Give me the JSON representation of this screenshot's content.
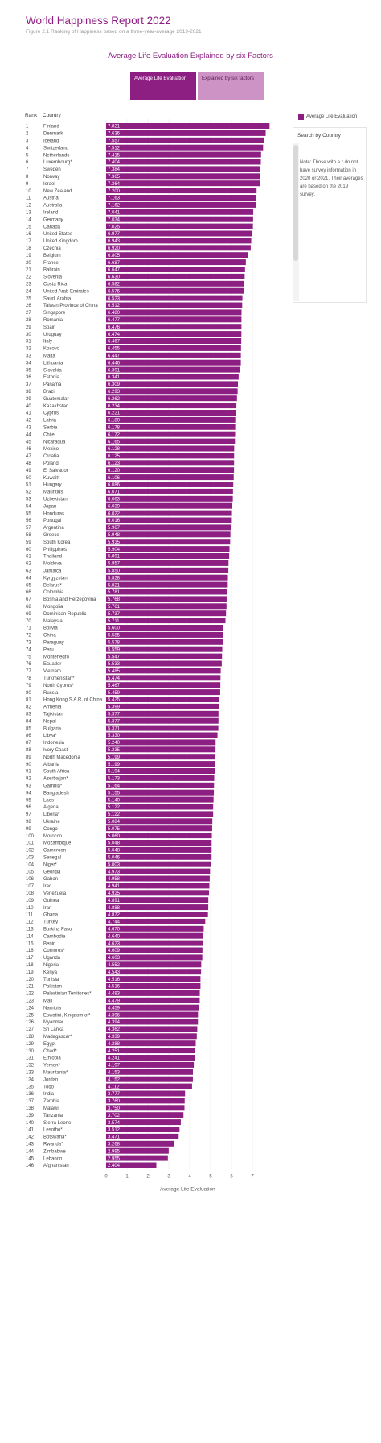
{
  "header": {
    "title": "World Happiness Report 2022",
    "subtitle": "Figure 2.1 Ranking of Happiness based on a three-year-average 2019-2021"
  },
  "viz_title": "Average Life Evaluation Explained by six Factors",
  "tabs": [
    {
      "label": "Average Life Evaluation",
      "active": true
    },
    {
      "label": "Explained by six factors",
      "active": false
    }
  ],
  "columns": {
    "rank": "Rank",
    "country": "Country"
  },
  "legend": {
    "label": "Average Life Evaluation",
    "color": "#8d1f83"
  },
  "search": {
    "label": "Search by Country"
  },
  "note": "Note: Those with a * do not have survey information in 2020 or 2021. Their averages are based on the 2019 survey.",
  "colors": {
    "bar": "#8d1f83",
    "tab_inactive": "#cc93c4",
    "title": "#8d1f83"
  },
  "chart_data": {
    "type": "bar",
    "orientation": "horizontal",
    "xlabel": "Average Life Evaluation",
    "xlim": [
      0,
      7.8
    ],
    "xticks": [
      0,
      1,
      2,
      3,
      4,
      5,
      6,
      7
    ],
    "grid": true,
    "legend_position": "top-right",
    "ranks": [
      "1",
      "2",
      "3",
      "4",
      "5",
      "6",
      "7",
      "8",
      "9",
      "10",
      "11",
      "12",
      "13",
      "14",
      "15",
      "16",
      "17",
      "18",
      "19",
      "20",
      "21",
      "22",
      "23",
      "24",
      "25",
      "26",
      "27",
      "28",
      "29",
      "30",
      "31",
      "32",
      "33",
      "34",
      "35",
      "36",
      "37",
      "38",
      "39",
      "40",
      "41",
      "42",
      "43",
      "44",
      "45",
      "46",
      "47",
      "48",
      "49",
      "50",
      "51",
      "52",
      "53",
      "54",
      "55",
      "56",
      "57",
      "58",
      "59",
      "60",
      "61",
      "62",
      "63",
      "64",
      "65",
      "66",
      "67",
      "68",
      "69",
      "70",
      "71",
      "72",
      "73",
      "74",
      "75",
      "76",
      "77",
      "78",
      "79",
      "80",
      "81",
      "82",
      "83",
      "84",
      "85",
      "86",
      "87",
      "88",
      "89",
      "90",
      "91",
      "92",
      "93",
      "94",
      "95",
      "96",
      "97",
      "98",
      "99",
      "100",
      "101",
      "102",
      "103",
      "104",
      "105",
      "106",
      "107",
      "108",
      "109",
      "110",
      "111",
      "112",
      "113",
      "114",
      "115",
      "116",
      "117",
      "118",
      "119",
      "120",
      "121",
      "122",
      "123",
      "124",
      "125",
      "126",
      "127",
      "128",
      "129",
      "130",
      "131",
      "132",
      "133",
      "134",
      "135",
      "136",
      "137",
      "138",
      "139",
      "140",
      "141",
      "142",
      "143",
      "144",
      "145",
      "146"
    ],
    "categories": [
      "Finland",
      "Denmark",
      "Iceland",
      "Switzerland",
      "Netherlands",
      "Luxembourg*",
      "Sweden",
      "Norway",
      "Israel",
      "New Zealand",
      "Austria",
      "Australia",
      "Ireland",
      "Germany",
      "Canada",
      "United States",
      "United Kingdom",
      "Czechia",
      "Belgium",
      "France",
      "Bahrain",
      "Slovenia",
      "Costa Rica",
      "United Arab Emirates",
      "Saudi Arabia",
      "Taiwan Province of China",
      "Singapore",
      "Romania",
      "Spain",
      "Uruguay",
      "Italy",
      "Kosovo",
      "Malta",
      "Lithuania",
      "Slovakia",
      "Estonia",
      "Panama",
      "Brazil",
      "Guatemala*",
      "Kazakhstan",
      "Cyprus",
      "Latvia",
      "Serbia",
      "Chile",
      "Nicaragua",
      "Mexico",
      "Croatia",
      "Poland",
      "El Salvador",
      "Kuwait*",
      "Hungary",
      "Mauritius",
      "Uzbekistan",
      "Japan",
      "Honduras",
      "Portugal",
      "Argentina",
      "Greece",
      "South Korea",
      "Philippines",
      "Thailand",
      "Moldova",
      "Jamaica",
      "Kyrgyzstan",
      "Belarus*",
      "Colombia",
      "Bosnia and Herzegovina",
      "Mongolia",
      "Dominican Republic",
      "Malaysia",
      "Bolivia",
      "China",
      "Paraguay",
      "Peru",
      "Montenegro",
      "Ecuador",
      "Vietnam",
      "Turkmenistan*",
      "North Cyprus*",
      "Russia",
      "Hong Kong S.A.R. of China",
      "Armenia",
      "Tajikistan",
      "Nepal",
      "Bulgaria",
      "Libya*",
      "Indonesia",
      "Ivory Coast",
      "North Macedonia",
      "Albania",
      "South Africa",
      "Azerbaijan*",
      "Gambia*",
      "Bangladesh",
      "Laos",
      "Algeria",
      "Liberia*",
      "Ukraine",
      "Congo",
      "Morocco",
      "Mozambique",
      "Cameroon",
      "Senegal",
      "Niger*",
      "Georgia",
      "Gabon",
      "Iraq",
      "Venezuela",
      "Guinea",
      "Iran",
      "Ghana",
      "Turkey",
      "Burkina Faso",
      "Cambodia",
      "Benin",
      "Comoros*",
      "Uganda",
      "Nigeria",
      "Kenya",
      "Tunisia",
      "Pakistan",
      "Palestinian Territories*",
      "Mali",
      "Namibia",
      "Eswatini, Kingdom of*",
      "Myanmar",
      "Sri Lanka",
      "Madagascar*",
      "Egypt",
      "Chad*",
      "Ethiopia",
      "Yemen*",
      "Mauritania*",
      "Jordan",
      "Togo",
      "India",
      "Zambia",
      "Malawi",
      "Tanzania",
      "Sierra Leone",
      "Lesotho*",
      "Botswana*",
      "Rwanda*",
      "Zimbabwe",
      "Lebanon",
      "Afghanistan"
    ],
    "values": [
      7.821,
      7.636,
      7.557,
      7.512,
      7.415,
      7.404,
      7.384,
      7.365,
      7.364,
      7.2,
      7.163,
      7.162,
      7.041,
      7.034,
      7.025,
      6.977,
      6.943,
      6.92,
      6.805,
      6.687,
      6.647,
      6.63,
      6.582,
      6.576,
      6.523,
      6.512,
      6.48,
      6.477,
      6.476,
      6.474,
      6.467,
      6.455,
      6.447,
      6.446,
      6.391,
      6.341,
      6.309,
      6.293,
      6.262,
      6.234,
      6.221,
      6.18,
      6.178,
      6.172,
      6.165,
      6.128,
      6.125,
      6.123,
      6.12,
      6.106,
      6.086,
      6.071,
      6.063,
      6.039,
      6.022,
      6.016,
      5.967,
      5.948,
      5.935,
      5.904,
      5.891,
      5.857,
      5.85,
      5.828,
      5.821,
      5.781,
      5.768,
      5.761,
      5.737,
      5.711,
      5.6,
      5.585,
      5.578,
      5.559,
      5.547,
      5.533,
      5.485,
      5.474,
      5.467,
      5.459,
      5.425,
      5.399,
      5.377,
      5.377,
      5.371,
      5.33,
      5.24,
      5.235,
      5.199,
      5.199,
      5.194,
      5.173,
      5.164,
      5.155,
      5.14,
      5.122,
      5.122,
      5.084,
      5.075,
      5.06,
      5.048,
      5.048,
      5.046,
      5.003,
      4.973,
      4.958,
      4.941,
      4.925,
      4.891,
      4.888,
      4.872,
      4.744,
      4.67,
      4.64,
      4.623,
      4.609,
      4.603,
      4.552,
      4.543,
      4.516,
      4.516,
      4.483,
      4.479,
      4.459,
      4.396,
      4.394,
      4.362,
      4.339,
      4.288,
      4.251,
      4.241,
      4.197,
      4.153,
      4.152,
      4.112,
      3.777,
      3.76,
      3.75,
      3.702,
      3.574,
      3.512,
      3.471,
      3.268,
      2.995,
      2.955,
      2.404
    ],
    "value_labels": [
      "7.821",
      "7.636",
      "7.557",
      "7.512",
      "7.415",
      "7.404",
      "7.384",
      "7.365",
      "7.364",
      "7.200",
      "7.163",
      "7.162",
      "7.041",
      "7.034",
      "7.025",
      "6.977",
      "6.943",
      "6.920",
      "6.805",
      "6.687",
      "6.647",
      "6.630",
      "6.582",
      "6.576",
      "6.523",
      "6.512",
      "6.480",
      "6.477",
      "6.476",
      "6.474",
      "6.467",
      "6.455",
      "6.447",
      "6.446",
      "6.391",
      "6.341",
      "6.309",
      "6.293",
      "6.262",
      "6.234",
      "6.221",
      "6.180",
      "6.178",
      "6.172",
      "6.165",
      "6.128",
      "6.125",
      "6.123",
      "6.120",
      "6.106",
      "6.086",
      "6.071",
      "6.063",
      "6.039",
      "6.022",
      "6.016",
      "5.967",
      "5.948",
      "5.935",
      "5.904",
      "5.891",
      "5.857",
      "5.850",
      "5.828",
      "5.821",
      "5.781",
      "5.768",
      "5.761",
      "5.737",
      "5.711",
      "5.600",
      "5.585",
      "5.578",
      "5.559",
      "5.547",
      "5.533",
      "5.485",
      "5.474",
      "5.467",
      "5.459",
      "5.425",
      "5.399",
      "5.377",
      "5.377",
      "5.371",
      "5.330",
      "5.240",
      "5.235",
      "5.199",
      "5.199",
      "5.194",
      "5.173",
      "5.164",
      "5.155",
      "5.140",
      "5.122",
      "5.122",
      "5.084",
      "5.075",
      "5.060",
      "5.048",
      "5.048",
      "5.046",
      "5.003",
      "4.973",
      "4.958",
      "4.941",
      "4.925",
      "4.891",
      "4.888",
      "4.872",
      "4.744",
      "4.670",
      "4.640",
      "4.623",
      "4.609",
      "4.603",
      "4.552",
      "4.543",
      "4.516",
      "4.516",
      "4.483",
      "4.479",
      "4.459",
      "4.396",
      "4.394",
      "4.362",
      "4.339",
      "4.288",
      "4.251",
      "4.241",
      "4.197",
      "4.153",
      "4.152",
      "4.112",
      "3.777",
      "3.760",
      "3.750",
      "3.702",
      "3.574",
      "3.512",
      "3.471",
      "3.268",
      "2.995",
      "2.955",
      "2.404"
    ]
  }
}
